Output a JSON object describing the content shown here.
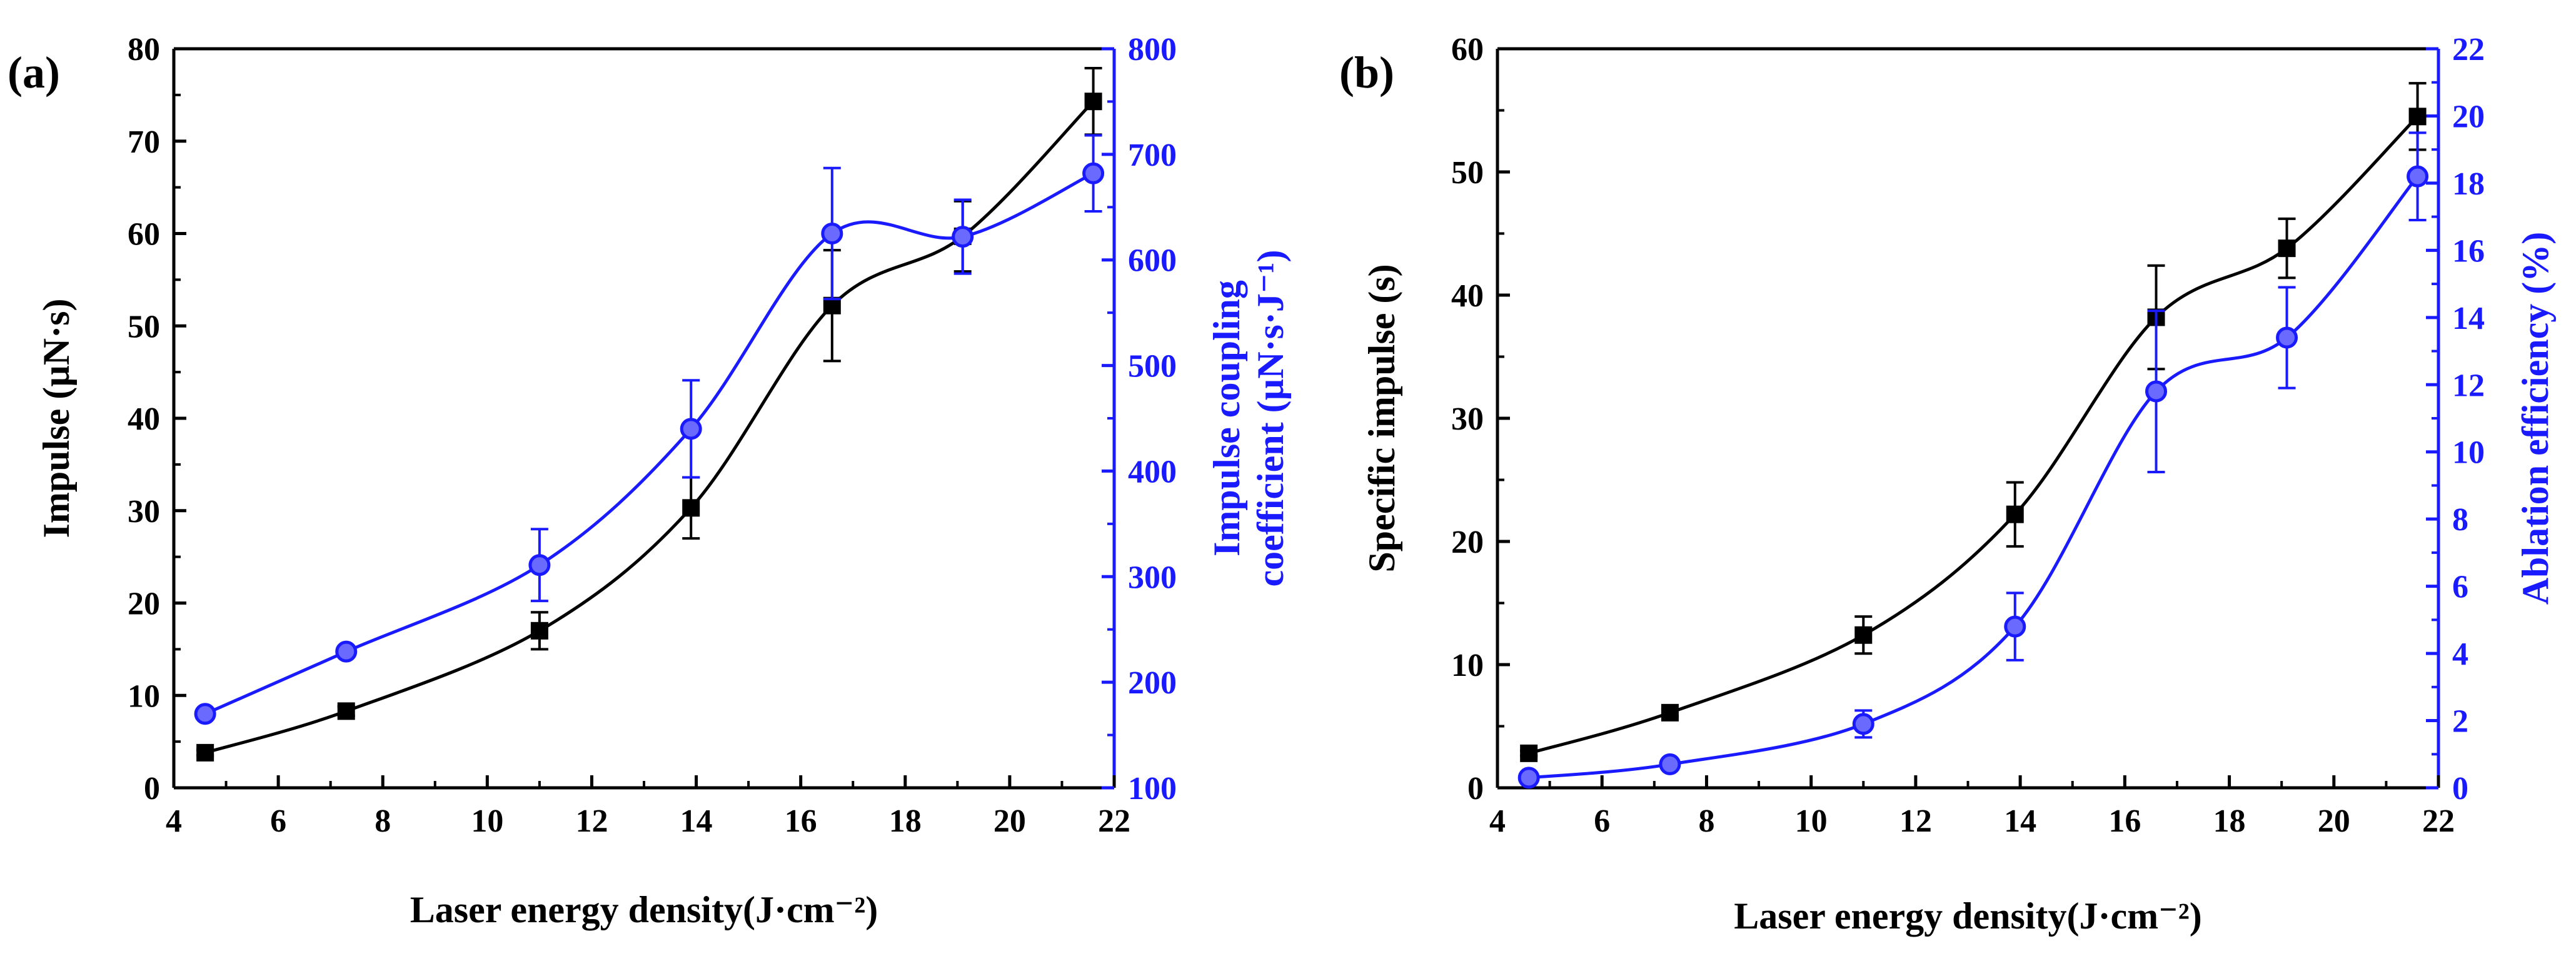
{
  "colors": {
    "left_series": "#000000",
    "right_series": "#1a1aff"
  },
  "chart_data": [
    {
      "panel_label": "(a)",
      "type": "line",
      "xlabel": "Laser energy density(J·cm⁻²)",
      "ylabel": "Impulse (µN·s)",
      "ylabel_right_line1": "Impulse  coupling",
      "ylabel_right_line2": "coefficient (µN·s·J⁻¹)",
      "xlim": [
        4,
        22
      ],
      "xticks": [
        4,
        6,
        8,
        10,
        12,
        14,
        16,
        18,
        20,
        22
      ],
      "ylim": [
        0,
        80
      ],
      "yticks": [
        0,
        10,
        20,
        30,
        40,
        50,
        60,
        70,
        80
      ],
      "ylim_right": [
        100,
        800
      ],
      "yticks_right": [
        100,
        200,
        300,
        400,
        500,
        600,
        700,
        800
      ],
      "series": [
        {
          "name": "Impulse",
          "axis": "left",
          "marker": "square",
          "x": [
            4.6,
            7.3,
            11.0,
            13.9,
            16.6,
            19.1,
            21.6
          ],
          "y": [
            3.8,
            8.3,
            17.0,
            30.3,
            52.2,
            59.7,
            74.3
          ],
          "err": [
            0.3,
            0.5,
            2.0,
            3.3,
            6.0,
            3.8,
            3.6
          ]
        },
        {
          "name": "Impulse coupling coefficient",
          "axis": "right",
          "marker": "circle",
          "x": [
            4.6,
            7.3,
            11.0,
            13.9,
            16.6,
            19.1,
            21.6
          ],
          "y": [
            170,
            229,
            311,
            440,
            625,
            622,
            682
          ],
          "err": [
            4,
            5,
            34,
            46,
            62,
            35,
            36
          ]
        }
      ]
    },
    {
      "panel_label": "(b)",
      "type": "line",
      "xlabel": "Laser energy density(J·cm⁻²)",
      "ylabel": "Specific impulse (s)",
      "ylabel_right_line1": "Ablation efficiency (%)",
      "xlim": [
        4,
        22
      ],
      "xticks": [
        4,
        6,
        8,
        10,
        12,
        14,
        16,
        18,
        20,
        22
      ],
      "ylim": [
        0,
        60
      ],
      "yticks": [
        0,
        10,
        20,
        30,
        40,
        50,
        60
      ],
      "ylim_right": [
        0,
        22
      ],
      "yticks_right": [
        0,
        2,
        4,
        6,
        8,
        10,
        12,
        14,
        16,
        18,
        20,
        22
      ],
      "series": [
        {
          "name": "Specific impulse",
          "axis": "left",
          "marker": "square",
          "x": [
            4.6,
            7.3,
            11.0,
            13.9,
            16.6,
            19.1,
            21.6
          ],
          "y": [
            2.8,
            6.1,
            12.4,
            22.2,
            38.2,
            43.8,
            54.5
          ],
          "err": [
            0.2,
            0.3,
            1.5,
            2.6,
            4.2,
            2.4,
            2.7
          ]
        },
        {
          "name": "Ablation efficiency",
          "axis": "right",
          "marker": "circle",
          "x": [
            4.6,
            7.3,
            11.0,
            13.9,
            16.6,
            19.1,
            21.6
          ],
          "y": [
            0.3,
            0.7,
            1.9,
            4.8,
            11.8,
            13.4,
            18.2
          ],
          "err": [
            0.1,
            0.1,
            0.4,
            1.0,
            2.4,
            1.5,
            1.3
          ]
        }
      ]
    }
  ]
}
